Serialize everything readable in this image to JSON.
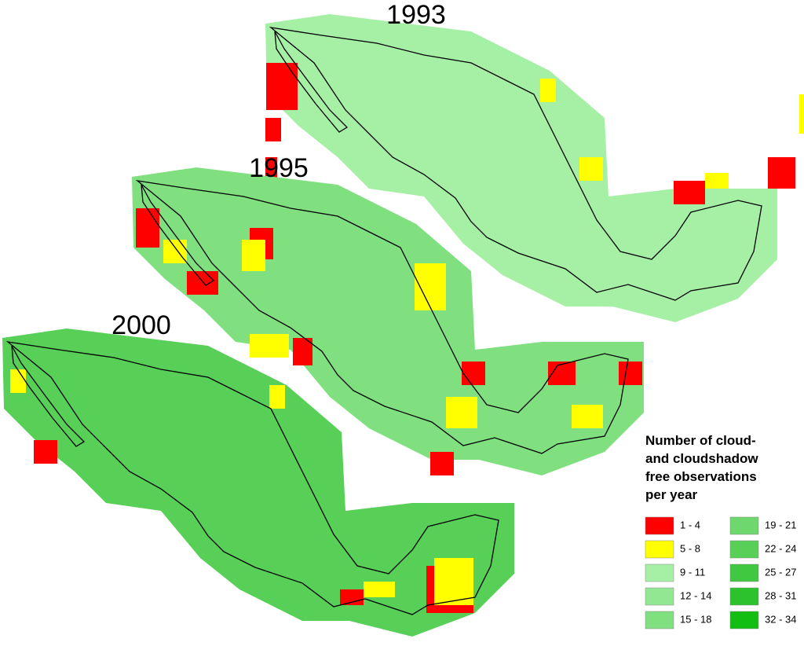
{
  "maps": [
    {
      "label": "1993"
    },
    {
      "label": "1995"
    },
    {
      "label": "2000"
    }
  ],
  "legend": {
    "title_lines": [
      "Number of cloud-",
      "and cloudshadow",
      "free observations",
      "per year"
    ],
    "items": [
      {
        "label": "1 - 4",
        "color": "#ff0000"
      },
      {
        "label": "5 - 8",
        "color": "#ffff00"
      },
      {
        "label": "9 - 11",
        "color": "#a6f0a6"
      },
      {
        "label": "12 - 14",
        "color": "#92e892"
      },
      {
        "label": "15 - 18",
        "color": "#80e080"
      },
      {
        "label": "19 - 21",
        "color": "#6ed86e"
      },
      {
        "label": "22 - 24",
        "color": "#58d058"
      },
      {
        "label": "25 - 27",
        "color": "#40c840"
      },
      {
        "label": "28 - 31",
        "color": "#2cc22c"
      },
      {
        "label": "32 - 34",
        "color": "#12be12"
      }
    ]
  }
}
